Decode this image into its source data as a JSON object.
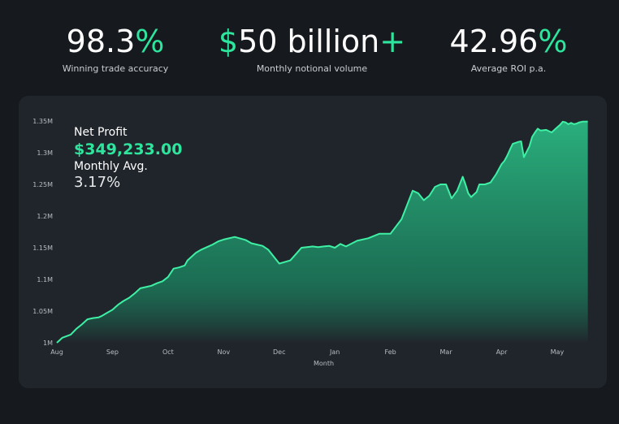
{
  "stats": [
    {
      "number": "98.3",
      "suffix": "%",
      "label": "Winning trade accuracy"
    },
    {
      "prefix": "$",
      "number": "50 billion",
      "suffix": "+",
      "label": "Monthly notional volume"
    },
    {
      "number": "42.96",
      "suffix": "%",
      "label": "Average ROI p.a."
    }
  ],
  "overlay": {
    "profit_label": "Net Profit",
    "profit_value": "$349,233.00",
    "avg_label": "Monthly Avg.",
    "avg_value": "3.17%"
  },
  "colors": {
    "accent": "#2ee59d",
    "line": "#3df0a4",
    "background": "#161a1f",
    "card": "#20252c"
  },
  "chart_data": {
    "type": "area",
    "xlabel": "Month",
    "ylabel": "",
    "ylim": [
      1000000,
      1350000
    ],
    "yticks": [
      1000000,
      1050000,
      1100000,
      1150000,
      1200000,
      1250000,
      1300000,
      1350000
    ],
    "ytick_labels": [
      "1M",
      "1.05M",
      "1.1M",
      "1.15M",
      "1.2M",
      "1.25M",
      "1.3M",
      "1.35M"
    ],
    "months": [
      "Aug",
      "Sep",
      "Oct",
      "Nov",
      "Dec",
      "Jan",
      "Feb",
      "Mar",
      "Apr",
      "May"
    ],
    "xlim": [
      0,
      9.6
    ],
    "series": [
      {
        "x": [
          0,
          0.1,
          0.25,
          0.35,
          0.45,
          0.55,
          0.65,
          0.75,
          0.8,
          0.9,
          1.0,
          1.1,
          1.2,
          1.3,
          1.4,
          1.5,
          1.6,
          1.7,
          1.8,
          1.9,
          2.0,
          2.1,
          2.2,
          2.3,
          2.35,
          2.5,
          2.6,
          2.7,
          2.8,
          2.9,
          3.0,
          3.2,
          3.4,
          3.5,
          3.6,
          3.7,
          3.8,
          4.0,
          4.2,
          4.3,
          4.4,
          4.6,
          4.7,
          4.8,
          4.9,
          5.0,
          5.1,
          5.2,
          5.4,
          5.6,
          5.8,
          6.0,
          6.2,
          6.4,
          6.5,
          6.6,
          6.7,
          6.8,
          6.9,
          7.0,
          7.1,
          7.2,
          7.3,
          7.35,
          7.4,
          7.45,
          7.55,
          7.6,
          7.7,
          7.8,
          7.9,
          8.0,
          8.05,
          8.1,
          8.15,
          8.2,
          8.3,
          8.35,
          8.4,
          8.5,
          8.55,
          8.6,
          8.65,
          8.7,
          8.8,
          8.9,
          9.0,
          9.05,
          9.1,
          9.15,
          9.2,
          9.25,
          9.3,
          9.35,
          9.4,
          9.45,
          9.55
        ],
        "y": [
          1000000,
          1008000,
          1013000,
          1022000,
          1029000,
          1037000,
          1039000,
          1040000,
          1042000,
          1047000,
          1052000,
          1060000,
          1066000,
          1071000,
          1078000,
          1086000,
          1088000,
          1090000,
          1094000,
          1097000,
          1104000,
          1117000,
          1119000,
          1122000,
          1130000,
          1142000,
          1147000,
          1151000,
          1155000,
          1160000,
          1163000,
          1167000,
          1162000,
          1157000,
          1155000,
          1153000,
          1147000,
          1125000,
          1130000,
          1140000,
          1150000,
          1152000,
          1151000,
          1152000,
          1153000,
          1150000,
          1156000,
          1152000,
          1161000,
          1165000,
          1172000,
          1172000,
          1195000,
          1240000,
          1236000,
          1225000,
          1232000,
          1246000,
          1250000,
          1250000,
          1228000,
          1240000,
          1262000,
          1250000,
          1236000,
          1230000,
          1238000,
          1250000,
          1250000,
          1253000,
          1266000,
          1282000,
          1287000,
          1295000,
          1305000,
          1314000,
          1317000,
          1318000,
          1293000,
          1310000,
          1325000,
          1332000,
          1338000,
          1335000,
          1336000,
          1332000,
          1340000,
          1344000,
          1349000,
          1348000,
          1345000,
          1347000,
          1345000,
          1346000,
          1348000,
          1349000,
          1349233
        ]
      }
    ]
  }
}
